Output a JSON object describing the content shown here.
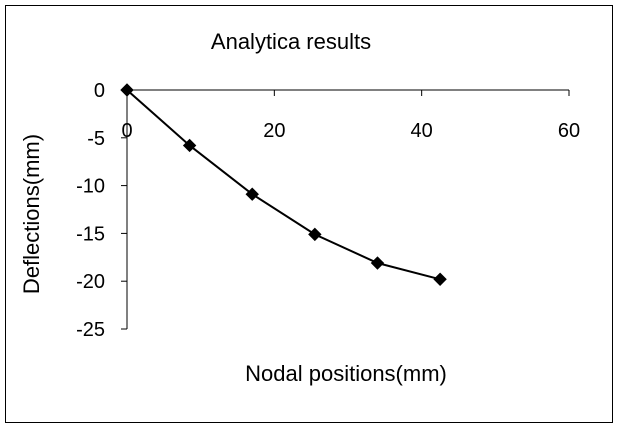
{
  "chart_data": {
    "type": "line",
    "title": "Analytica results",
    "xlabel": "Nodal positions(mm)",
    "ylabel": "Deflections(mm)",
    "xlim": [
      0,
      60
    ],
    "ylim": [
      -25,
      0
    ],
    "x_ticks": [
      0,
      20,
      40,
      60
    ],
    "y_ticks": [
      0,
      -5,
      -10,
      -15,
      -20,
      -25
    ],
    "x_tick_labels": [
      "0",
      "20",
      "40",
      "60"
    ],
    "y_tick_labels": [
      "0",
      "-5",
      "-10",
      "-15",
      "-20",
      "-25"
    ],
    "grid": false,
    "legend": "none",
    "marker": "diamond",
    "series": [
      {
        "x": [
          0,
          8.5,
          17,
          25.5,
          34,
          42.5
        ],
        "y": [
          0,
          -5.8,
          -10.9,
          -15.1,
          -18.1,
          -19.8
        ],
        "color": "#000000"
      }
    ]
  }
}
